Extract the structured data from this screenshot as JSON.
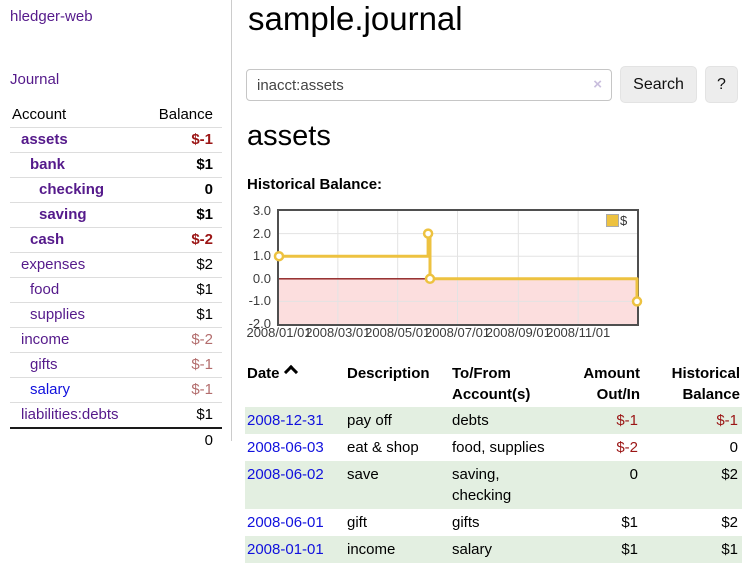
{
  "colors": {
    "link_purple": "#551a8b",
    "link_blue": "#1111dd",
    "negative_strong": "#9b1515",
    "negative_faded": "#b36d6d",
    "row_shaded": "#e3efe1",
    "chart_series": "#edc240",
    "chart_negative_bg": "#fcdede",
    "chart_zero_line": "#8b1a1a",
    "chart_grid": "#e3e3e3"
  },
  "sidebar": {
    "brand": "hledger-web",
    "nav": {
      "journal": "Journal"
    },
    "accounts": {
      "col_account": "Account",
      "col_balance": "Balance",
      "rows": [
        {
          "name": "assets",
          "balance": "$-1",
          "depth": 1,
          "bold": true,
          "link": "purple",
          "bal": "negstrong"
        },
        {
          "name": "bank",
          "balance": "$1",
          "depth": 2,
          "bold": true,
          "link": "purple",
          "bal": "pos"
        },
        {
          "name": "checking",
          "balance": "0",
          "depth": 3,
          "bold": true,
          "link": "purple",
          "bal": "pos"
        },
        {
          "name": "saving",
          "balance": "$1",
          "depth": 3,
          "bold": true,
          "link": "purple",
          "bal": "pos"
        },
        {
          "name": "cash",
          "balance": "$-2",
          "depth": 2,
          "bold": true,
          "link": "purple",
          "bal": "negstrong"
        },
        {
          "name": "expenses",
          "balance": "$2",
          "depth": 1,
          "bold": false,
          "link": "purple",
          "bal": "pos"
        },
        {
          "name": "food",
          "balance": "$1",
          "depth": 2,
          "bold": false,
          "link": "purple",
          "bal": "pos"
        },
        {
          "name": "supplies",
          "balance": "$1",
          "depth": 2,
          "bold": false,
          "link": "purple",
          "bal": "pos"
        },
        {
          "name": "income",
          "balance": "$-2",
          "depth": 1,
          "bold": false,
          "link": "purple",
          "bal": "negfaded"
        },
        {
          "name": "gifts",
          "balance": "$-1",
          "depth": 2,
          "bold": false,
          "link": "purple",
          "bal": "negfaded"
        },
        {
          "name": "salary",
          "balance": "$-1",
          "depth": 2,
          "bold": false,
          "link": "blue",
          "bal": "negfaded"
        },
        {
          "name": "liabilities:debts",
          "balance": "$1",
          "depth": 1,
          "bold": false,
          "link": "purple",
          "bal": "pos"
        }
      ],
      "total": "0"
    }
  },
  "header": {
    "title": "sample.journal"
  },
  "search": {
    "value": "inacct:assets",
    "clear_icon": "×",
    "search_label": "Search",
    "help_label": "?"
  },
  "account_page": {
    "heading": "assets",
    "chart_title": "Historical Balance:"
  },
  "chart_data": {
    "type": "line",
    "step": true,
    "title": "Historical Balance:",
    "x_range": [
      "2008-01-01",
      "2008-12-31"
    ],
    "ylim": [
      -2.0,
      3.0
    ],
    "y_tick_labels": [
      "3.0",
      "2.0",
      "1.0",
      "0.0",
      "-1.0",
      "-2.0"
    ],
    "x_tick_labels": [
      "2008/01/01",
      "2008/03/01",
      "2008/05/01",
      "2008/07/01",
      "2008/09/01",
      "2008/11/01"
    ],
    "series": [
      {
        "name": "$",
        "color": "#edc240",
        "points": [
          [
            "2008-01-01",
            1.0
          ],
          [
            "2008-06-01",
            2.0
          ],
          [
            "2008-06-03",
            0.0
          ],
          [
            "2008-12-31",
            -1.0
          ]
        ]
      }
    ],
    "legend": {
      "label": "$",
      "position": "top-right"
    },
    "grid": true
  },
  "register": {
    "sort_indicator": "ascending",
    "columns": {
      "date": "Date",
      "description": "Description",
      "accounts": "To/From Account(s)",
      "amount": "Amount Out/In",
      "balance": "Historical Balance"
    },
    "rows": [
      {
        "date": "2008-12-31",
        "description": "pay off",
        "accounts": "debts",
        "amount": "$-1",
        "amount_neg": true,
        "balance": "$-1",
        "balance_neg": true,
        "shaded": true
      },
      {
        "date": "2008-06-03",
        "description": "eat & shop",
        "accounts": "food, supplies",
        "amount": "$-2",
        "amount_neg": true,
        "balance": "0",
        "balance_neg": false,
        "shaded": false
      },
      {
        "date": "2008-06-02",
        "description": "save",
        "accounts": "saving, checking",
        "amount": "0",
        "amount_neg": false,
        "balance": "$2",
        "balance_neg": false,
        "shaded": true
      },
      {
        "date": "2008-06-01",
        "description": "gift",
        "accounts": "gifts",
        "amount": "$1",
        "amount_neg": false,
        "balance": "$2",
        "balance_neg": false,
        "shaded": false
      },
      {
        "date": "2008-01-01",
        "description": "income",
        "accounts": "salary",
        "amount": "$1",
        "amount_neg": false,
        "balance": "$1",
        "balance_neg": false,
        "shaded": true
      }
    ]
  }
}
